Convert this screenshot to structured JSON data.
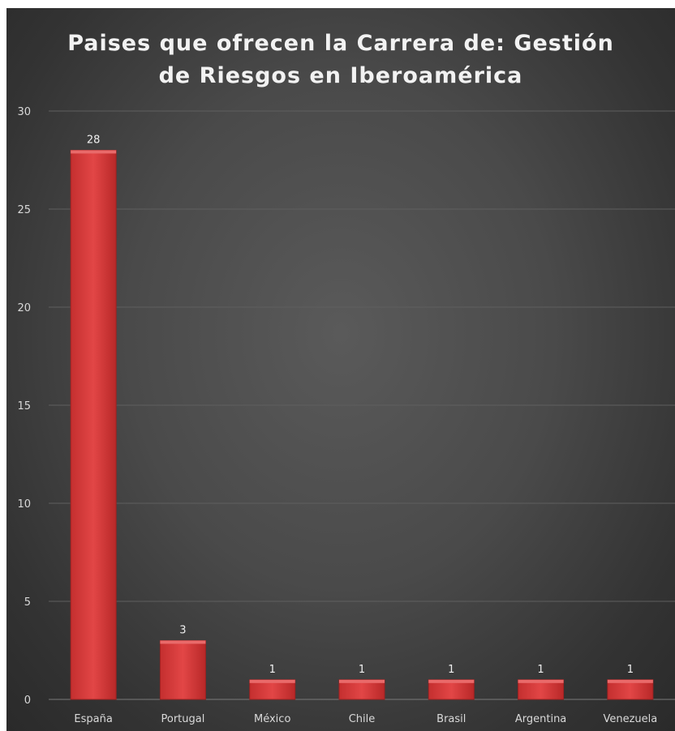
{
  "chart_data": {
    "type": "bar",
    "title": "Paises que ofrecen la Carrera de: Gestión\nde Riesgos  en Iberoamérica",
    "categories": [
      "España",
      "Portugal",
      "México",
      "Chile",
      "Brasil",
      "Argentina",
      "Venezuela"
    ],
    "values": [
      28,
      3,
      1,
      1,
      1,
      1,
      1
    ],
    "data_labels": [
      "28",
      "3",
      "1",
      "1",
      "1",
      "1",
      "1"
    ],
    "yticks": [
      "0",
      "5",
      "10",
      "15",
      "20",
      "25",
      "30"
    ],
    "ylim": [
      0,
      30
    ],
    "xlabel": "",
    "ylabel": "",
    "grid": true,
    "legend": "none",
    "colors": {
      "bar": "#d63b3b",
      "bar_top": "#e96a6a",
      "background": "#474747",
      "grid": "#5f5f5f",
      "text": "#d9d9d9"
    }
  }
}
